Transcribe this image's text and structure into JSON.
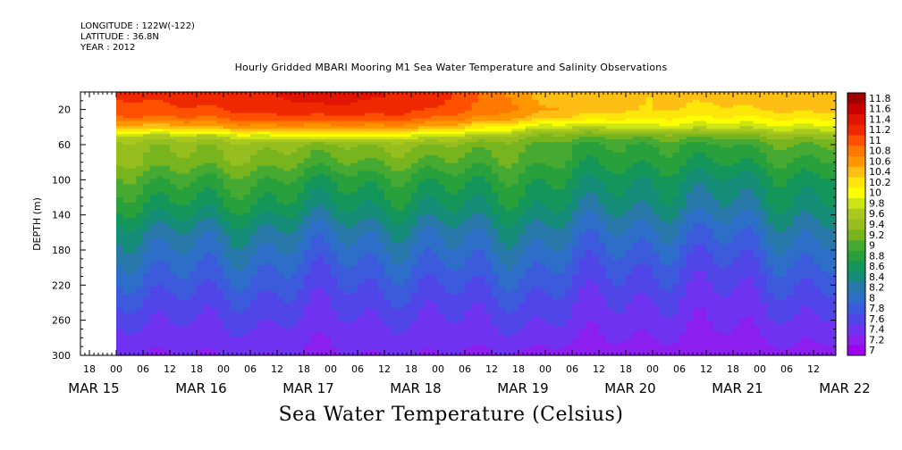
{
  "header": {
    "longitude": "LONGITUDE : 122W(-122)",
    "latitude": "LATITUDE : 36.8N",
    "year": "YEAR : 2012"
  },
  "chart_data": {
    "type": "heatmap",
    "title": "Hourly Gridded MBARI Mooring M1 Sea Water Temperature and Salinity Observations",
    "ylabel": "DEPTH (m)",
    "bottom_title": "Sea Water Temperature (Celsius)",
    "ylim": [
      300,
      0
    ],
    "y_ticks": [
      20,
      60,
      100,
      140,
      180,
      220,
      260,
      300
    ],
    "x_range": [
      "MAR 14 12:00",
      "MAR 22 15:00"
    ],
    "x_hour_ticks": [
      "18",
      "00",
      "06",
      "12",
      "18",
      "00",
      "06",
      "12",
      "18",
      "00",
      "06",
      "12",
      "18",
      "00",
      "06",
      "12",
      "18",
      "00",
      "06",
      "12",
      "18",
      "00",
      "06",
      "12",
      "18",
      "00",
      "06",
      "12"
    ],
    "x_day_labels": [
      "MAR 15",
      "MAR 16",
      "MAR 17",
      "MAR 18",
      "MAR 19",
      "MAR 20",
      "MAR 21",
      "MAR 22"
    ],
    "data_start": "MAR 15 00:00",
    "colorbar_levels": [
      "7",
      "7.2",
      "7.4",
      "7.6",
      "7.8",
      "8",
      "8.2",
      "8.4",
      "8.6",
      "8.8",
      "9",
      "9.2",
      "9.4",
      "9.6",
      "9.8",
      "10",
      "10.2",
      "10.4",
      "10.6",
      "10.8",
      "11",
      "11.2",
      "11.4",
      "11.6",
      "11.8"
    ],
    "colorbar_colors": [
      "#a000f0",
      "#8c1ef0",
      "#6e32f0",
      "#5046e8",
      "#3c5adc",
      "#2d6ec8",
      "#2878aa",
      "#148c78",
      "#14965a",
      "#28a03c",
      "#46aa32",
      "#78b41e",
      "#96be1e",
      "#aac81e",
      "#cce614",
      "#ffff00",
      "#ffe60a",
      "#ffbe14",
      "#ff9600",
      "#ff7800",
      "#ff5000",
      "#f02800",
      "#e01400",
      "#c80000",
      "#a00000"
    ],
    "profile_depths_m": [
      5,
      20,
      30,
      40,
      50,
      60,
      80,
      100,
      130,
      160,
      200,
      240,
      280,
      300
    ],
    "profiles": [
      {
        "time": "MAR 15 00:00",
        "temps": [
          11.2,
          11.1,
          10.9,
          10.4,
          9.7,
          9.4,
          9.3,
          9.0,
          8.7,
          8.3,
          8.0,
          7.7,
          7.45,
          7.35
        ]
      },
      {
        "time": "MAR 16 00:00",
        "temps": [
          11.3,
          11.2,
          11.0,
          10.6,
          9.8,
          9.45,
          9.3,
          9.0,
          8.7,
          8.3,
          8.0,
          7.7,
          7.5,
          7.4
        ]
      },
      {
        "time": "MAR 17 00:00",
        "temps": [
          11.5,
          11.4,
          11.2,
          10.8,
          10.2,
          9.45,
          9.25,
          8.95,
          8.7,
          8.35,
          8.0,
          7.75,
          7.5,
          7.4
        ]
      },
      {
        "time": "MAR 18 00:00",
        "temps": [
          11.3,
          11.2,
          11.0,
          10.6,
          9.9,
          9.45,
          9.2,
          8.9,
          8.65,
          8.3,
          8.0,
          7.7,
          7.5,
          7.4
        ]
      },
      {
        "time": "MAR 19 00:00",
        "temps": [
          10.5,
          10.6,
          10.4,
          9.8,
          9.3,
          9.05,
          8.95,
          8.75,
          8.5,
          8.2,
          7.9,
          7.65,
          7.45,
          7.3
        ]
      },
      {
        "time": "MAR 20 00:00",
        "temps": [
          10.4,
          10.4,
          10.2,
          9.9,
          9.3,
          9.0,
          8.85,
          8.65,
          8.45,
          8.15,
          7.85,
          7.6,
          7.4,
          7.3
        ]
      },
      {
        "time": "MAR 21 00:00",
        "temps": [
          10.5,
          10.4,
          10.2,
          9.9,
          9.4,
          9.1,
          8.9,
          8.65,
          8.45,
          8.15,
          7.85,
          7.6,
          7.4,
          7.3
        ]
      },
      {
        "time": "MAR 22 00:00",
        "temps": [
          10.6,
          10.5,
          10.2,
          9.9,
          9.5,
          9.2,
          8.9,
          8.65,
          8.45,
          8.2,
          7.9,
          7.65,
          7.4,
          7.3
        ]
      },
      {
        "time": "MAR 22 15:00",
        "temps": [
          11.4,
          11.0,
          10.4,
          10.0,
          9.6,
          9.3,
          9.0,
          8.7,
          8.5,
          8.3,
          8.0,
          7.75,
          7.5,
          7.35
        ]
      }
    ]
  }
}
